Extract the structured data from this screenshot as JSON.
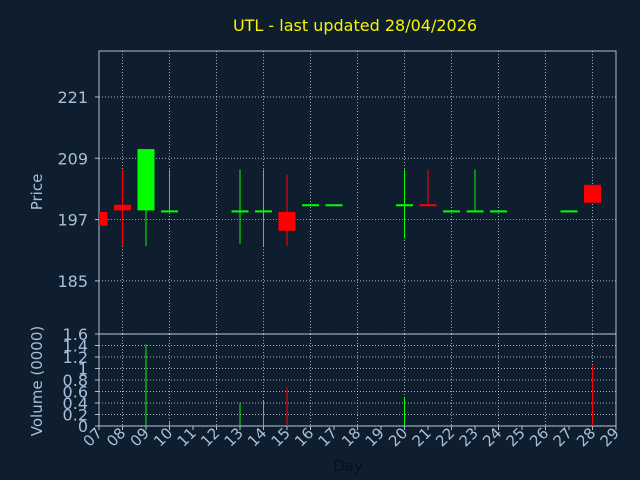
{
  "chart_data": {
    "type": "candlestick",
    "title": "UTL - last updated 28/04/2026",
    "price_panel": {
      "ylabel": "Price",
      "yticks": [
        185,
        197,
        209,
        221
      ],
      "ylim": [
        174.6,
        230.0
      ]
    },
    "volume_panel": {
      "ylabel": "Volume (0000)",
      "yticks": [
        "0",
        "0.2",
        "0.4",
        "0.6",
        "0.8",
        "1",
        "1.2",
        "1.4",
        "1.6"
      ],
      "ylim": [
        0,
        1.6
      ]
    },
    "xlabel": "Day",
    "days": [
      "07",
      "08",
      "09",
      "10",
      "11",
      "12",
      "13",
      "14",
      "15",
      "16",
      "17",
      "18",
      "19",
      "20",
      "21",
      "22",
      "23",
      "24",
      "25",
      "26",
      "27",
      "28",
      "29"
    ],
    "candles": [
      {
        "day": "07",
        "open": 198.5,
        "close": 195.8,
        "high": 198.5,
        "low": 195.8
      },
      {
        "day": "08",
        "open": 199.9,
        "close": 198.8,
        "high": 206.8,
        "low": 191.8
      },
      {
        "day": "09",
        "open": 198.8,
        "close": 210.8,
        "high": 210.8,
        "low": 191.8
      },
      {
        "day": "10",
        "open": 198.5,
        "close": 198.8,
        "high": 206.8,
        "low": 198.5
      },
      {
        "day": "13",
        "open": 198.5,
        "close": 198.8,
        "high": 206.8,
        "low": 192.3
      },
      {
        "day": "14",
        "open": 198.5,
        "close": 198.8,
        "high": 206.8,
        "low": 191.8
      },
      {
        "day": "15",
        "open": 198.5,
        "close": 194.8,
        "high": 205.8,
        "low": 191.8
      },
      {
        "day": "16",
        "open": 199.7,
        "close": 200.0,
        "high": 200.0,
        "low": 199.7
      },
      {
        "day": "17",
        "open": 199.7,
        "close": 200.0,
        "high": 200.0,
        "low": 199.7
      },
      {
        "day": "20",
        "open": 199.7,
        "close": 200.0,
        "high": 206.8,
        "low": 193.3
      },
      {
        "day": "21",
        "open": 200.0,
        "close": 199.7,
        "high": 206.8,
        "low": 199.7
      },
      {
        "day": "22",
        "open": 198.5,
        "close": 198.8,
        "high": 198.8,
        "low": 198.5
      },
      {
        "day": "23",
        "open": 198.5,
        "close": 198.8,
        "high": 206.8,
        "low": 198.5
      },
      {
        "day": "24",
        "open": 198.5,
        "close": 198.8,
        "high": 198.8,
        "low": 198.5
      },
      {
        "day": "27",
        "open": 198.5,
        "close": 198.8,
        "high": 198.8,
        "low": 198.5
      },
      {
        "day": "28",
        "open": 203.8,
        "close": 200.3,
        "high": 203.8,
        "low": 200.3
      }
    ],
    "volumes": [
      {
        "day": "09",
        "value": 1.42,
        "direction": "up"
      },
      {
        "day": "10",
        "value": 0.09,
        "direction": "up"
      },
      {
        "day": "13",
        "value": 0.4,
        "direction": "up"
      },
      {
        "day": "14",
        "value": 0.44,
        "direction": "up"
      },
      {
        "day": "15",
        "value": 0.67,
        "direction": "down"
      },
      {
        "day": "20",
        "value": 0.5,
        "direction": "up"
      },
      {
        "day": "28",
        "value": 1.05,
        "direction": "down"
      }
    ],
    "grid": true,
    "colors": {
      "background": "#0f1e2e",
      "axis": "#a7bfd8",
      "grid": "#d9e3ee",
      "title": "#f5f500",
      "up": "#00ff00",
      "down": "#ff0000"
    }
  }
}
